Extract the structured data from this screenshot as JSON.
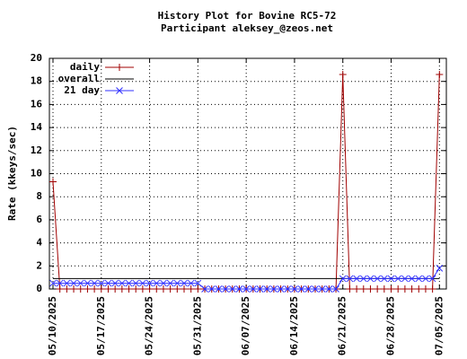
{
  "chart_data": {
    "type": "line",
    "title": "History Plot for Bovine RC5-72",
    "subtitle": "Participant aleksey_@zeos.net",
    "y_label": "Rate (kkeys/sec)",
    "x": [
      "05/10/2025",
      "05/11/2025",
      "05/12/2025",
      "05/13/2025",
      "05/14/2025",
      "05/15/2025",
      "05/16/2025",
      "05/17/2025",
      "05/18/2025",
      "05/19/2025",
      "05/20/2025",
      "05/21/2025",
      "05/22/2025",
      "05/23/2025",
      "05/24/2025",
      "05/25/2025",
      "05/26/2025",
      "05/27/2025",
      "05/28/2025",
      "05/29/2025",
      "05/30/2025",
      "05/31/2025",
      "06/01/2025",
      "06/02/2025",
      "06/03/2025",
      "06/04/2025",
      "06/05/2025",
      "06/06/2025",
      "06/07/2025",
      "06/08/2025",
      "06/09/2025",
      "06/10/2025",
      "06/11/2025",
      "06/12/2025",
      "06/13/2025",
      "06/14/2025",
      "06/15/2025",
      "06/16/2025",
      "06/17/2025",
      "06/18/2025",
      "06/19/2025",
      "06/20/2025",
      "06/21/2025",
      "06/22/2025",
      "06/23/2025",
      "06/24/2025",
      "06/25/2025",
      "06/26/2025",
      "06/27/2025",
      "06/28/2025",
      "06/29/2025",
      "06/30/2025",
      "07/01/2025",
      "07/02/2025",
      "07/03/2025",
      "07/04/2025",
      "07/05/2025"
    ],
    "series": [
      {
        "name": "daily",
        "color": "#a00000",
        "marker": "plus",
        "values": [
          9.3,
          0,
          0,
          0,
          0,
          0,
          0,
          0,
          0,
          0,
          0,
          0,
          0,
          0,
          0,
          0,
          0,
          0,
          0,
          0,
          0,
          0,
          0,
          0,
          0,
          0,
          0,
          0,
          0,
          0,
          0,
          0,
          0,
          0,
          0,
          0,
          0,
          0,
          0,
          0,
          0,
          0,
          18.6,
          0,
          0,
          0,
          0,
          0,
          0,
          0,
          0,
          0,
          0,
          0,
          0,
          0,
          18.6
        ]
      },
      {
        "name": "overall",
        "color": "#000000",
        "marker": "none",
        "values": [
          0.9,
          0.9,
          0.9,
          0.9,
          0.9,
          0.9,
          0.9,
          0.9,
          0.9,
          0.9,
          0.9,
          0.9,
          0.9,
          0.9,
          0.9,
          0.9,
          0.9,
          0.9,
          0.9,
          0.9,
          0.9,
          0.9,
          0.9,
          0.9,
          0.9,
          0.9,
          0.9,
          0.9,
          0.9,
          0.9,
          0.9,
          0.9,
          0.9,
          0.9,
          0.9,
          0.9,
          0.9,
          0.9,
          0.9,
          0.9,
          0.9,
          0.9,
          0.9,
          0.9,
          0.9,
          0.9,
          0.9,
          0.9,
          0.9,
          0.9,
          0.9,
          0.9,
          0.9,
          0.9,
          0.9,
          0.9,
          0.9
        ]
      },
      {
        "name": "21 day",
        "color": "#3030ff",
        "marker": "cross",
        "values": [
          0.5,
          0.5,
          0.5,
          0.5,
          0.5,
          0.5,
          0.5,
          0.5,
          0.5,
          0.5,
          0.5,
          0.5,
          0.5,
          0.5,
          0.5,
          0.5,
          0.5,
          0.5,
          0.5,
          0.5,
          0.5,
          0.5,
          0,
          0,
          0,
          0,
          0,
          0,
          0,
          0,
          0,
          0,
          0,
          0,
          0,
          0,
          0,
          0,
          0,
          0,
          0,
          0,
          0.9,
          0.9,
          0.9,
          0.9,
          0.9,
          0.9,
          0.9,
          0.9,
          0.9,
          0.9,
          0.9,
          0.9,
          0.9,
          0.9,
          1.8
        ]
      }
    ],
    "xlim": [
      "05/10/2025",
      "07/06/2025"
    ],
    "xticks": [
      "05/10/2025",
      "05/17/2025",
      "05/24/2025",
      "05/31/2025",
      "06/07/2025",
      "06/14/2025",
      "06/21/2025",
      "06/28/2025",
      "07/05/2025"
    ],
    "ylim": [
      0,
      20
    ],
    "yticks": [
      0,
      2,
      4,
      6,
      8,
      10,
      12,
      14,
      16,
      18,
      20
    ],
    "grid": true,
    "legend": "top-left"
  }
}
